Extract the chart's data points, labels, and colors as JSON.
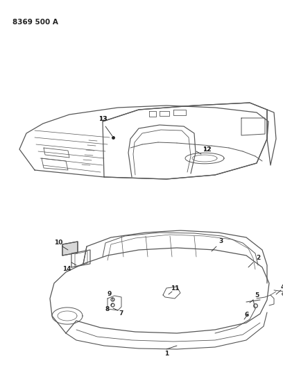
{
  "title": "8369 500 A",
  "bg": "#ffffff",
  "lc": "#555555",
  "lc_dark": "#222222",
  "label_fs": 6.5,
  "fig_w": 4.08,
  "fig_h": 5.33,
  "dpi": 100
}
